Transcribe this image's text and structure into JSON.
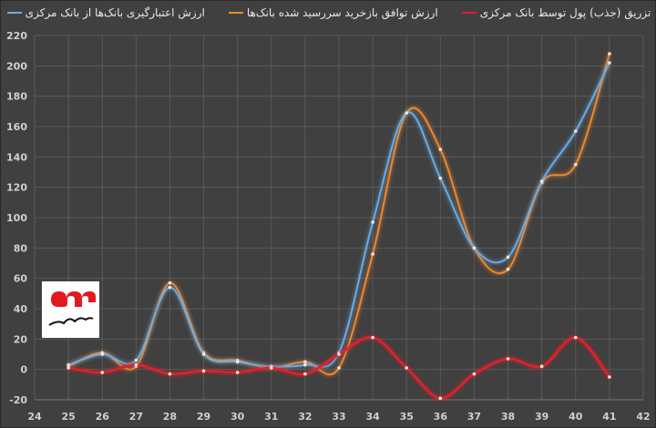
{
  "chart_data": {
    "type": "line",
    "title": "",
    "xlabel": "",
    "ylabel": "",
    "xlim": [
      24,
      42
    ],
    "ylim": [
      -20,
      220
    ],
    "xticks": [
      24,
      25,
      26,
      27,
      28,
      29,
      30,
      31,
      32,
      33,
      34,
      35,
      36,
      37,
      38,
      39,
      40,
      41,
      42
    ],
    "yticks": [
      -20,
      0,
      20,
      40,
      60,
      80,
      100,
      120,
      140,
      160,
      180,
      200,
      220
    ],
    "grid": true,
    "legend_position": "top",
    "x": [
      25,
      26,
      27,
      28,
      29,
      30,
      31,
      32,
      33,
      34,
      35,
      36,
      37,
      38,
      39,
      40,
      41
    ],
    "series": [
      {
        "name": "تزریق (جذب) پول توسط بانک مرکزی",
        "color": "#e0202a",
        "values": [
          1,
          -2,
          3,
          -3,
          -1,
          -2,
          1,
          -3,
          10,
          21,
          1,
          -19,
          -3,
          7,
          2,
          21,
          -5
        ]
      },
      {
        "name": "ارزش توافق بازخرید سررسید شده بانک‌ها",
        "color": "#f08a30",
        "values": [
          2,
          11,
          2,
          57,
          11,
          6,
          1,
          5,
          1,
          76,
          169,
          145,
          80,
          66,
          123,
          135,
          208
        ]
      },
      {
        "name": "ارزش اعتبارگیری بانک‌ها از بانک مرکزی",
        "color": "#6aaee8",
        "values": [
          3,
          10,
          6,
          54,
          10,
          5,
          2,
          3,
          11,
          97,
          169,
          126,
          80,
          74,
          124,
          157,
          202
        ]
      }
    ]
  },
  "logo": {
    "text": "خبرگزاری مهر"
  }
}
